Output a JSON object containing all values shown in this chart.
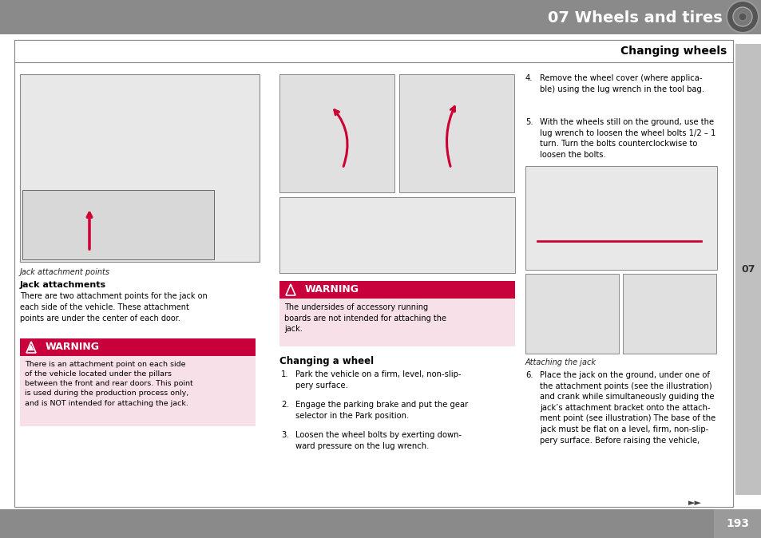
{
  "header_bg": "#8a8a8a",
  "header_text": "07 Wheels and tires",
  "header_text_color": "#ffffff",
  "footer_bg": "#8a8a8a",
  "page_bg": "#ffffff",
  "warning_header_bg": "#c8003c",
  "warning_header_text": "WARNING",
  "warning_header_text_color": "#ffffff",
  "warning_body_bg": "#f7e0e7",
  "warning1_body": "There is an attachment point on each side\nof the vehicle located under the pillars\nbetween the front and rear doors. This point\nis used during the production process only,\nand is NOT intended for attaching the jack.",
  "warning2_body": "The undersides of accessory running\nboards are not intended for attaching the\njack.",
  "section_title": "Changing wheels",
  "col1_caption": "Jack attachment points",
  "col1_heading": "Jack attachments",
  "col1_body": "There are two attachment points for the jack on\neach side of the vehicle. These attachment\npoints are under the center of each door.",
  "col2_heading": "Changing a wheel",
  "col2_steps": [
    "Park the vehicle on a firm, level, non-slip-\npery surface.",
    "Engage the parking brake and put the gear\nselector in the Park position.",
    "Loosen the wheel bolts by exerting down-\nward pressure on the lug wrench."
  ],
  "col3_steps_45": [
    "Remove the wheel cover (where applica-\nble) using the lug wrench in the tool bag.",
    "With the wheels still on the ground, use the\nlug wrench to loosen the wheel bolts 1/2 – 1\nturn. Turn the bolts counterclockwise to\nloosen the bolts."
  ],
  "col3_caption": "Attaching the jack",
  "col3_step6": "Place the jack on the ground, under one of\nthe attachment points (see the illustration)\nand crank while simultaneously guiding the\njack’s attachment bracket onto the attach-\nment point (see illustration) The base of the\njack must be flat on a level, firm, non-slip-\npery surface. Before raising the vehicle,",
  "right_tab_text": "07",
  "page_number": "193",
  "forward_arrows": "►►"
}
